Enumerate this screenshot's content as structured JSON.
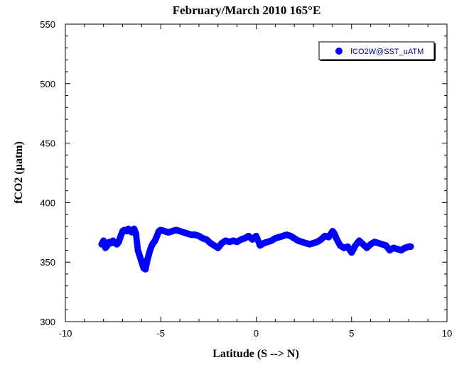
{
  "chart_data": {
    "type": "scatter",
    "title": "February/March 2010 165°E",
    "xlabel": "Latitude (S --> N)",
    "ylabel": "fCO2 (µatm)",
    "xlim": [
      -10,
      10
    ],
    "ylim": [
      300,
      550
    ],
    "xticks": [
      -10,
      -5,
      0,
      5,
      10
    ],
    "yticks": [
      300,
      350,
      400,
      450,
      500,
      550
    ],
    "xtick_labels": [
      "-10",
      "-5",
      "0",
      "5",
      "10"
    ],
    "ytick_labels": [
      "300",
      "350",
      "400",
      "450",
      "500",
      "550"
    ],
    "grid": false,
    "legend_position": "top-right",
    "series": [
      {
        "name": "fCO2W@SST_uATM",
        "color": "#0000ff",
        "marker": "circle",
        "x": [
          -8.1,
          -8.0,
          -7.9,
          -7.8,
          -7.7,
          -7.6,
          -7.5,
          -7.4,
          -7.3,
          -7.2,
          -7.1,
          -7.0,
          -6.9,
          -6.8,
          -6.7,
          -6.6,
          -6.5,
          -6.4,
          -6.3,
          -6.2,
          -6.1,
          -6.0,
          -5.9,
          -5.8,
          -5.7,
          -5.6,
          -5.5,
          -5.4,
          -5.3,
          -5.2,
          -5.1,
          -5.0,
          -4.8,
          -4.6,
          -4.4,
          -4.2,
          -4.0,
          -3.8,
          -3.6,
          -3.4,
          -3.2,
          -3.0,
          -2.8,
          -2.6,
          -2.4,
          -2.2,
          -2.0,
          -1.8,
          -1.6,
          -1.4,
          -1.2,
          -1.0,
          -0.8,
          -0.6,
          -0.4,
          -0.2,
          0.0,
          0.2,
          0.4,
          0.6,
          0.8,
          1.0,
          1.2,
          1.4,
          1.6,
          1.8,
          2.0,
          2.2,
          2.4,
          2.6,
          2.8,
          3.0,
          3.2,
          3.4,
          3.6,
          3.8,
          4.0,
          4.1,
          4.2,
          4.4,
          4.6,
          4.8,
          5.0,
          5.2,
          5.4,
          5.6,
          5.8,
          6.0,
          6.2,
          6.4,
          6.6,
          6.8,
          7.0,
          7.2,
          7.4,
          7.6,
          7.8,
          8.0,
          8.1
        ],
        "y": [
          365,
          368,
          362,
          364,
          367,
          366,
          368,
          366,
          365,
          367,
          372,
          376,
          377,
          376,
          378,
          376,
          375,
          378,
          374,
          360,
          355,
          350,
          345,
          344,
          352,
          358,
          363,
          366,
          368,
          372,
          376,
          377,
          376,
          375,
          376,
          377,
          376,
          375,
          374,
          373,
          373,
          372,
          370,
          369,
          366,
          364,
          362,
          366,
          368,
          367,
          368,
          367,
          369,
          370,
          372,
          369,
          372,
          364,
          366,
          367,
          368,
          370,
          371,
          372,
          373,
          372,
          370,
          368,
          367,
          366,
          365,
          366,
          367,
          369,
          372,
          371,
          376,
          374,
          370,
          364,
          362,
          363,
          358,
          364,
          368,
          365,
          362,
          365,
          367,
          366,
          365,
          364,
          360,
          362,
          361,
          360,
          362,
          363,
          363
        ]
      }
    ]
  }
}
